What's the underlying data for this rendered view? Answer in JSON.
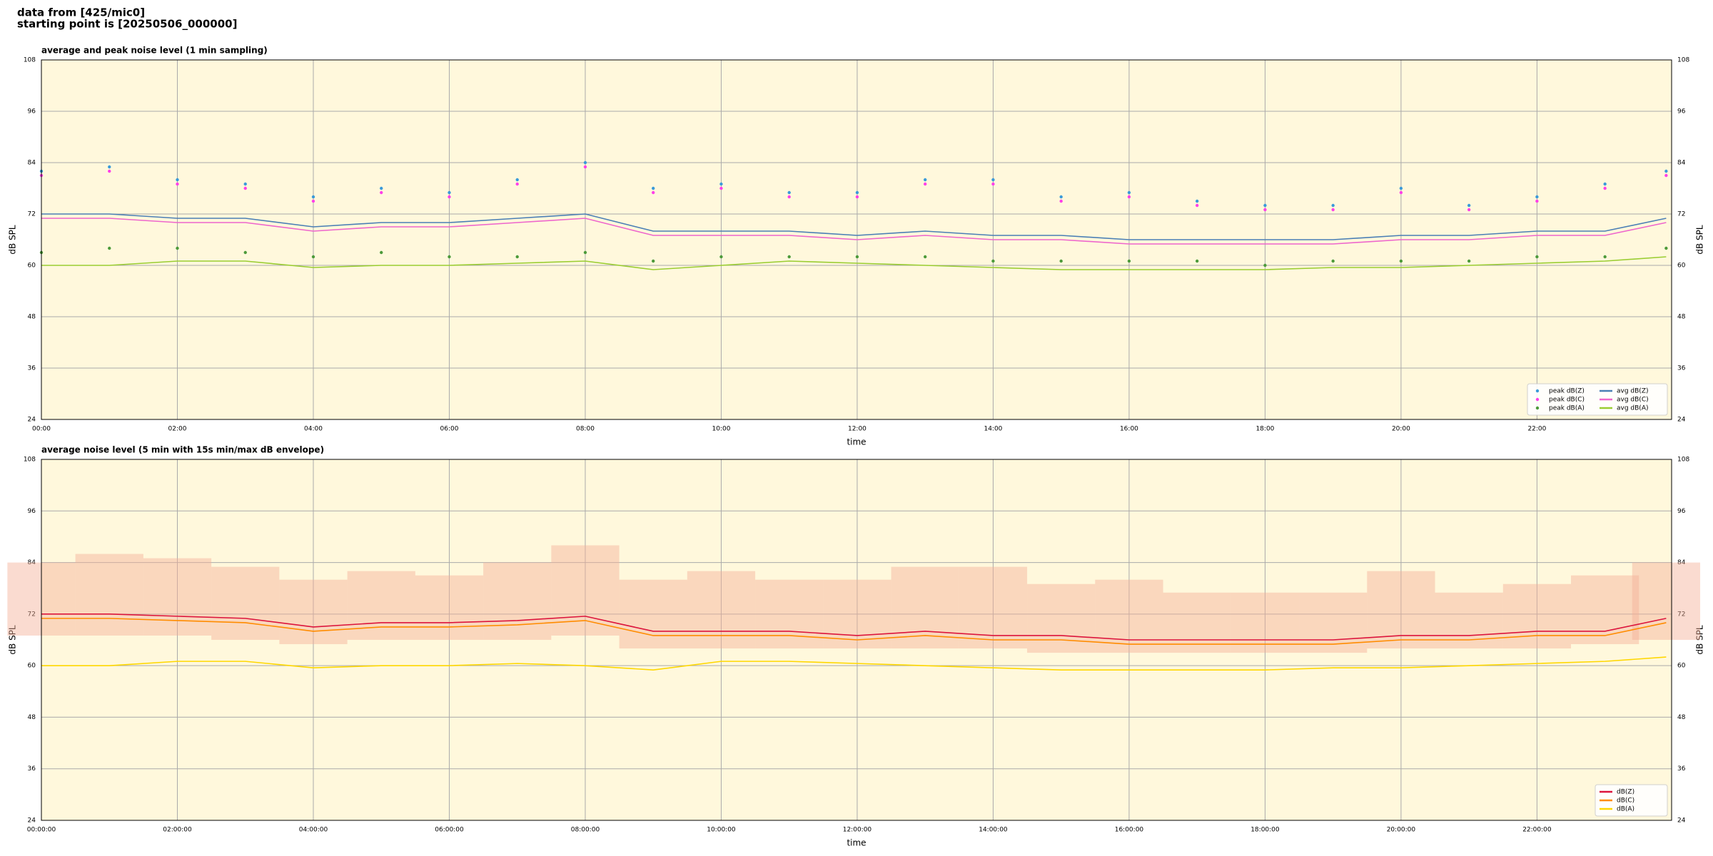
{
  "header": {
    "line1": "data from [425/mic0]",
    "line2": "starting point is [20250506_000000]"
  },
  "chart_data": [
    {
      "type": "line",
      "title": "average and peak noise level (1 min sampling)",
      "xlabel": "time",
      "ylabel": "dB SPL",
      "background": "#fff8dc",
      "grid": true,
      "legend": "lower right",
      "legend_columns": 2,
      "xlim": [
        0,
        23.98
      ],
      "ylim": [
        24,
        108
      ],
      "yticks": [
        24,
        36,
        48,
        60,
        72,
        84,
        96,
        108
      ],
      "xticks": [
        {
          "value": 0,
          "label": "00:00"
        },
        {
          "value": 2,
          "label": "02:00"
        },
        {
          "value": 4,
          "label": "04:00"
        },
        {
          "value": 6,
          "label": "06:00"
        },
        {
          "value": 8,
          "label": "08:00"
        },
        {
          "value": 10,
          "label": "10:00"
        },
        {
          "value": 12,
          "label": "12:00"
        },
        {
          "value": 14,
          "label": "14:00"
        },
        {
          "value": 16,
          "label": "16:00"
        },
        {
          "value": 18,
          "label": "18:00"
        },
        {
          "value": 20,
          "label": "20:00"
        },
        {
          "value": 22,
          "label": "22:00"
        }
      ],
      "x": [
        0,
        1,
        2,
        3,
        4,
        5,
        6,
        7,
        8,
        9,
        10,
        11,
        12,
        13,
        14,
        15,
        16,
        17,
        18,
        19,
        20,
        21,
        22,
        23,
        23.9
      ],
      "series": [
        {
          "name": "peak dB(Z)",
          "kind": "points",
          "color": "#3a9ad9",
          "values": [
            82,
            83,
            80,
            79,
            76,
            78,
            77,
            80,
            84,
            78,
            79,
            77,
            77,
            80,
            80,
            76,
            77,
            75,
            74,
            74,
            78,
            74,
            76,
            79,
            82
          ]
        },
        {
          "name": "peak dB(C)",
          "kind": "points",
          "color": "#ff3fe8",
          "values": [
            81,
            82,
            79,
            78,
            75,
            77,
            76,
            79,
            83,
            77,
            78,
            76,
            76,
            79,
            79,
            75,
            76,
            74,
            73,
            73,
            77,
            73,
            75,
            78,
            81
          ]
        },
        {
          "name": "peak dB(A)",
          "kind": "points",
          "color": "#4c9a3a",
          "values": [
            63,
            64,
            64,
            63,
            62,
            63,
            62,
            62,
            63,
            61,
            62,
            62,
            62,
            62,
            61,
            61,
            61,
            61,
            60,
            61,
            61,
            61,
            62,
            62,
            64
          ]
        },
        {
          "name": "avg dB(Z)",
          "kind": "line",
          "color": "#4a7fb5",
          "values": [
            72,
            72,
            71,
            71,
            69,
            70,
            70,
            71,
            72,
            68,
            68,
            68,
            67,
            68,
            67,
            67,
            66,
            66,
            66,
            66,
            67,
            67,
            68,
            68,
            71
          ]
        },
        {
          "name": "avg dB(C)",
          "kind": "line",
          "color": "#ee66cc",
          "values": [
            71,
            71,
            70,
            70,
            68,
            69,
            69,
            70,
            71,
            67,
            67,
            67,
            66,
            67,
            66,
            66,
            65,
            65,
            65,
            65,
            66,
            66,
            67,
            67,
            70
          ]
        },
        {
          "name": "avg dB(A)",
          "kind": "line",
          "color": "#9acd32",
          "values": [
            60,
            60,
            61,
            61,
            59.5,
            60,
            60,
            60.5,
            61,
            59,
            60,
            61,
            60.5,
            60,
            59.5,
            59,
            59,
            59,
            59,
            59.5,
            59.5,
            60,
            60.5,
            61,
            62
          ]
        }
      ]
    },
    {
      "type": "line",
      "title": "average noise level (5 min with 15s min/max dB envelope)",
      "xlabel": "time",
      "ylabel": "dB SPL",
      "background": "#fff8dc",
      "grid": true,
      "legend": "lower right",
      "legend_columns": 1,
      "xlim": [
        0,
        23.98
      ],
      "ylim": [
        24,
        108
      ],
      "yticks": [
        24,
        36,
        48,
        60,
        72,
        84,
        96,
        108
      ],
      "xticks": [
        {
          "value": 0,
          "label": "00:00:00"
        },
        {
          "value": 2,
          "label": "02:00:00"
        },
        {
          "value": 4,
          "label": "04:00:00"
        },
        {
          "value": 6,
          "label": "06:00:00"
        },
        {
          "value": 8,
          "label": "08:00:00"
        },
        {
          "value": 10,
          "label": "10:00:00"
        },
        {
          "value": 12,
          "label": "12:00:00"
        },
        {
          "value": 14,
          "label": "14:00:00"
        },
        {
          "value": 16,
          "label": "16:00:00"
        },
        {
          "value": 18,
          "label": "18:00:00"
        },
        {
          "value": 20,
          "label": "20:00:00"
        },
        {
          "value": 22,
          "label": "22:00:00"
        }
      ],
      "x": [
        0,
        1,
        2,
        3,
        4,
        5,
        6,
        7,
        8,
        9,
        10,
        11,
        12,
        13,
        14,
        15,
        16,
        17,
        18,
        19,
        20,
        21,
        22,
        23,
        23.9
      ],
      "envelope": {
        "color": "#f4b096",
        "lower": [
          67,
          67,
          67,
          66,
          65,
          66,
          66,
          66,
          67,
          64,
          64,
          64,
          64,
          64,
          64,
          63,
          63,
          63,
          63,
          63,
          64,
          64,
          64,
          65,
          66
        ],
        "upper": [
          84,
          86,
          85,
          83,
          80,
          82,
          81,
          84,
          88,
          80,
          82,
          80,
          80,
          83,
          83,
          79,
          80,
          77,
          77,
          77,
          82,
          77,
          79,
          81,
          84
        ]
      },
      "series": [
        {
          "name": "dB(Z)",
          "kind": "line",
          "color": "#dc143c",
          "values": [
            72,
            72,
            71.5,
            71,
            69,
            70,
            70,
            70.5,
            71.5,
            68,
            68,
            68,
            67,
            68,
            67,
            67,
            66,
            66,
            66,
            66,
            67,
            67,
            68,
            68,
            71
          ]
        },
        {
          "name": "dB(C)",
          "kind": "line",
          "color": "#ff8c00",
          "values": [
            71,
            71,
            70.5,
            70,
            68,
            69,
            69,
            69.5,
            70.5,
            67,
            67,
            67,
            66,
            67,
            66,
            66,
            65,
            65,
            65,
            65,
            66,
            66,
            67,
            67,
            70
          ]
        },
        {
          "name": "dB(A)",
          "kind": "line",
          "color": "#ffd700",
          "values": [
            60,
            60,
            61,
            61,
            59.5,
            60,
            60,
            60.5,
            60,
            59,
            61,
            61,
            60.5,
            60,
            59.5,
            59,
            59,
            59,
            59,
            59.5,
            59.5,
            60,
            60.5,
            61,
            62
          ]
        }
      ]
    }
  ]
}
